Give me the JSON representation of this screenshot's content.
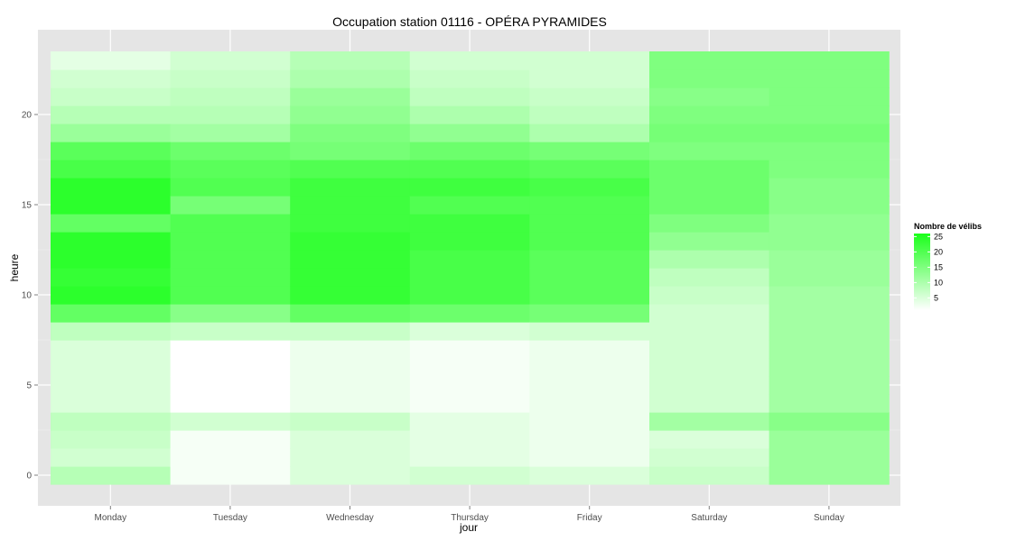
{
  "chart_data": {
    "type": "heatmap",
    "title": "Occupation station 01116 - OPÉRA PYRAMIDES",
    "xlabel": "jour",
    "ylabel": "heure",
    "x_categories": [
      "Monday",
      "Tuesday",
      "Wednesday",
      "Thursday",
      "Friday",
      "Saturday",
      "Sunday"
    ],
    "y_ticks": [
      0,
      5,
      10,
      15,
      20
    ],
    "ylim": [
      -0.5,
      23.5
    ],
    "grid": true,
    "legend_position": "right",
    "legend": {
      "title": "Nombre de vélibs",
      "ticks": [
        5,
        10,
        15,
        20,
        25
      ],
      "range": [
        1,
        26
      ],
      "color_low": "#ffffff",
      "color_high": "#1aff1a"
    },
    "panel_background": "#e5e5e5",
    "values": {
      "Monday": [
        9,
        6,
        7,
        8,
        5,
        5,
        5,
        5,
        8,
        18,
        24,
        23,
        24,
        24,
        18,
        24,
        24,
        21,
        19,
        12,
        9,
        7,
        6,
        4
      ],
      "Tuesday": [
        2,
        2,
        2,
        6,
        1,
        1,
        1,
        1,
        7,
        14,
        20,
        20,
        20,
        20,
        20,
        16,
        20,
        19,
        17,
        11,
        9,
        8,
        7,
        6
      ],
      "Wednesday": [
        5,
        5,
        5,
        7,
        3,
        3,
        3,
        3,
        7,
        18,
        23,
        23,
        23,
        23,
        22,
        22,
        22,
        20,
        16,
        15,
        13,
        12,
        10,
        9
      ],
      "Thursday": [
        6,
        4,
        4,
        4,
        2,
        2,
        2,
        2,
        5,
        17,
        21,
        21,
        21,
        22,
        22,
        20,
        22,
        20,
        17,
        13,
        10,
        8,
        7,
        6
      ],
      "Friday": [
        5,
        3,
        3,
        3,
        3,
        3,
        3,
        3,
        6,
        16,
        19,
        19,
        19,
        20,
        20,
        20,
        21,
        19,
        16,
        10,
        8,
        7,
        6,
        6
      ],
      "Saturday": [
        7,
        6,
        5,
        11,
        6,
        6,
        6,
        6,
        6,
        6,
        7,
        8,
        10,
        13,
        15,
        17,
        17,
        17,
        15,
        16,
        15,
        14,
        15,
        15
      ],
      "Sunday": [
        12,
        12,
        12,
        14,
        11,
        11,
        11,
        11,
        11,
        11,
        11,
        12,
        12,
        13,
        13,
        14,
        14,
        15,
        15,
        16,
        15,
        15,
        15,
        15
      ]
    }
  }
}
